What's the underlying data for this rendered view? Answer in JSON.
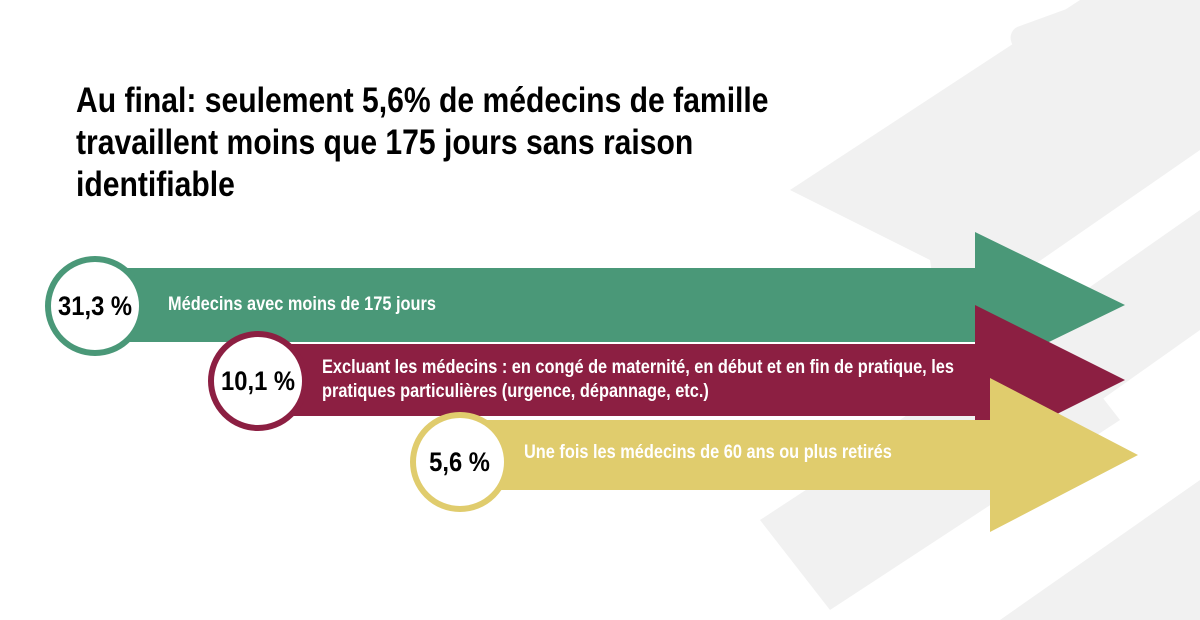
{
  "title": "Au final:  seulement 5,6% de médecins de famille travaillent moins que 175 jours sans raison identifiable",
  "colors": {
    "green": "#4a9878",
    "maroon": "#8c1f42",
    "yellow": "#e0cc6d",
    "background_shape": "#f1f1f1",
    "text_dark": "#000000",
    "text_light": "#ffffff"
  },
  "steps": [
    {
      "value": "31,3 %",
      "label_line1": "Médecins avec moins de 175 jours",
      "label_line2": "",
      "color": "#4a9878"
    },
    {
      "value": "10,1 %",
      "label_line1": "Excluant les médecins : en congé de maternité, en début et en fin de pratique, les",
      "label_line2": "pratiques particulières (urgence, dépannage, etc.)",
      "color": "#8c1f42"
    },
    {
      "value": "5,6 %",
      "label_line1": "Une fois les médecins de 60 ans ou plus retirés",
      "label_line2": "",
      "color": "#e0cc6d"
    }
  ]
}
